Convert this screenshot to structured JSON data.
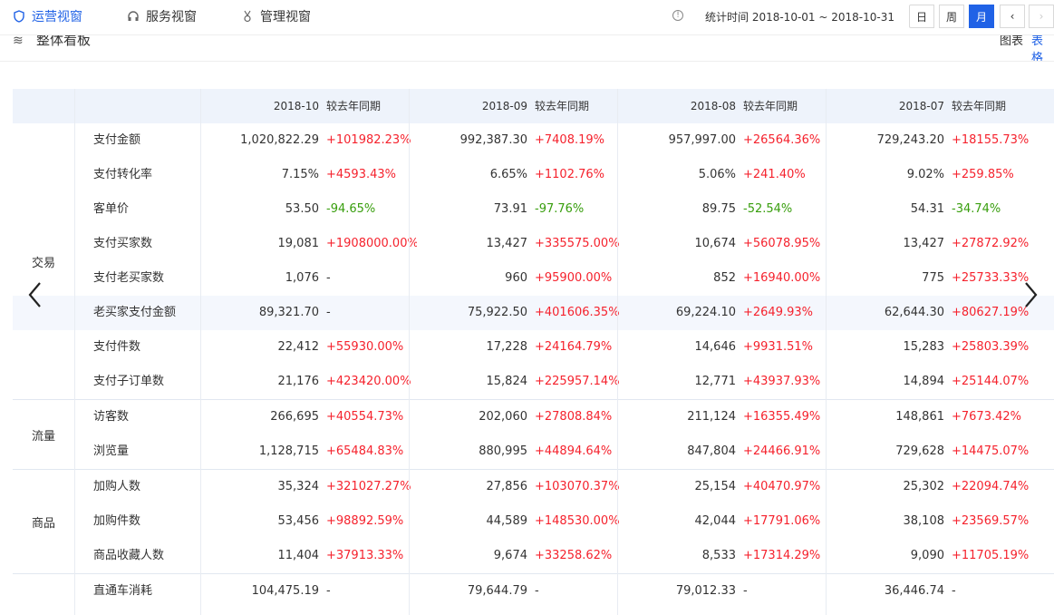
{
  "tabs": [
    {
      "label": "运营视窗",
      "icon": "shield-icon"
    },
    {
      "label": "服务视窗",
      "icon": "headset-icon"
    },
    {
      "label": "管理视窗",
      "icon": "medal-icon"
    }
  ],
  "stat_time": "统计时间 2018-10-01 ~ 2018-10-31",
  "period_buttons": {
    "day": "日",
    "week": "周",
    "month": "月"
  },
  "section": {
    "title": "整体看板",
    "view_chart": "图表",
    "view_table": "表格"
  },
  "columns": [
    {
      "period": "2018-10",
      "compare": "较去年同期"
    },
    {
      "period": "2018-09",
      "compare": "较去年同期"
    },
    {
      "period": "2018-08",
      "compare": "较去年同期"
    },
    {
      "period": "2018-07",
      "compare": "较去年同期"
    }
  ],
  "groups": [
    {
      "name": "交易"
    },
    {
      "name": "流量"
    },
    {
      "name": "商品"
    }
  ],
  "rows": [
    {
      "label": "支付金额",
      "cells": [
        [
          "1,020,822.29",
          "+101982.23%"
        ],
        [
          "992,387.30",
          "+7408.19%"
        ],
        [
          "957,997.00",
          "+26564.36%"
        ],
        [
          "729,243.20",
          "+18155.73%"
        ]
      ]
    },
    {
      "label": "支付转化率",
      "cells": [
        [
          "7.15%",
          "+4593.43%"
        ],
        [
          "6.65%",
          "+1102.76%"
        ],
        [
          "5.06%",
          "+241.40%"
        ],
        [
          "9.02%",
          "+259.85%"
        ]
      ]
    },
    {
      "label": "客单价",
      "cells": [
        [
          "53.50",
          "-94.65%"
        ],
        [
          "73.91",
          "-97.76%"
        ],
        [
          "89.75",
          "-52.54%"
        ],
        [
          "54.31",
          "-34.74%"
        ]
      ]
    },
    {
      "label": "支付买家数",
      "cells": [
        [
          "19,081",
          "+1908000.00%"
        ],
        [
          "13,427",
          "+335575.00%"
        ],
        [
          "10,674",
          "+56078.95%"
        ],
        [
          "13,427",
          "+27872.92%"
        ]
      ]
    },
    {
      "label": "支付老买家数",
      "cells": [
        [
          "1,076",
          "-"
        ],
        [
          "960",
          "+95900.00%"
        ],
        [
          "852",
          "+16940.00%"
        ],
        [
          "775",
          "+25733.33%"
        ]
      ]
    },
    {
      "label": "老买家支付金额",
      "cells": [
        [
          "89,321.70",
          "-"
        ],
        [
          "75,922.50",
          "+401606.35%"
        ],
        [
          "69,224.10",
          "+2649.93%"
        ],
        [
          "62,644.30",
          "+80627.19%"
        ]
      ]
    },
    {
      "label": "支付件数",
      "cells": [
        [
          "22,412",
          "+55930.00%"
        ],
        [
          "17,228",
          "+24164.79%"
        ],
        [
          "14,646",
          "+9931.51%"
        ],
        [
          "15,283",
          "+25803.39%"
        ]
      ]
    },
    {
      "label": "支付子订单数",
      "cells": [
        [
          "21,176",
          "+423420.00%"
        ],
        [
          "15,824",
          "+225957.14%"
        ],
        [
          "12,771",
          "+43937.93%"
        ],
        [
          "14,894",
          "+25144.07%"
        ]
      ]
    },
    {
      "label": "访客数",
      "cells": [
        [
          "266,695",
          "+40554.73%"
        ],
        [
          "202,060",
          "+27808.84%"
        ],
        [
          "211,124",
          "+16355.49%"
        ],
        [
          "148,861",
          "+7673.42%"
        ]
      ]
    },
    {
      "label": "浏览量",
      "cells": [
        [
          "1,128,715",
          "+65484.83%"
        ],
        [
          "880,995",
          "+44894.64%"
        ],
        [
          "847,804",
          "+24466.91%"
        ],
        [
          "729,628",
          "+14475.07%"
        ]
      ]
    },
    {
      "label": "加购人数",
      "cells": [
        [
          "35,324",
          "+321027.27%"
        ],
        [
          "27,856",
          "+103070.37%"
        ],
        [
          "25,154",
          "+40470.97%"
        ],
        [
          "25,302",
          "+22094.74%"
        ]
      ]
    },
    {
      "label": "加购件数",
      "cells": [
        [
          "53,456",
          "+98892.59%"
        ],
        [
          "44,589",
          "+148530.00%"
        ],
        [
          "42,044",
          "+17791.06%"
        ],
        [
          "38,108",
          "+23569.57%"
        ]
      ]
    },
    {
      "label": "商品收藏人数",
      "cells": [
        [
          "11,404",
          "+37913.33%"
        ],
        [
          "9,674",
          "+33258.62%"
        ],
        [
          "8,533",
          "+17314.29%"
        ],
        [
          "9,090",
          "+11705.19%"
        ]
      ]
    },
    {
      "label": "直通车消耗",
      "cells": [
        [
          "104,475.19",
          "-"
        ],
        [
          "79,644.79",
          "-"
        ],
        [
          "79,012.33",
          "-"
        ],
        [
          "36,446.74",
          "-"
        ]
      ]
    }
  ],
  "colors": {
    "accent": "#2062e6",
    "positive": "#f5222d",
    "negative": "#389e0d",
    "header_bg": "#eef3fb"
  }
}
